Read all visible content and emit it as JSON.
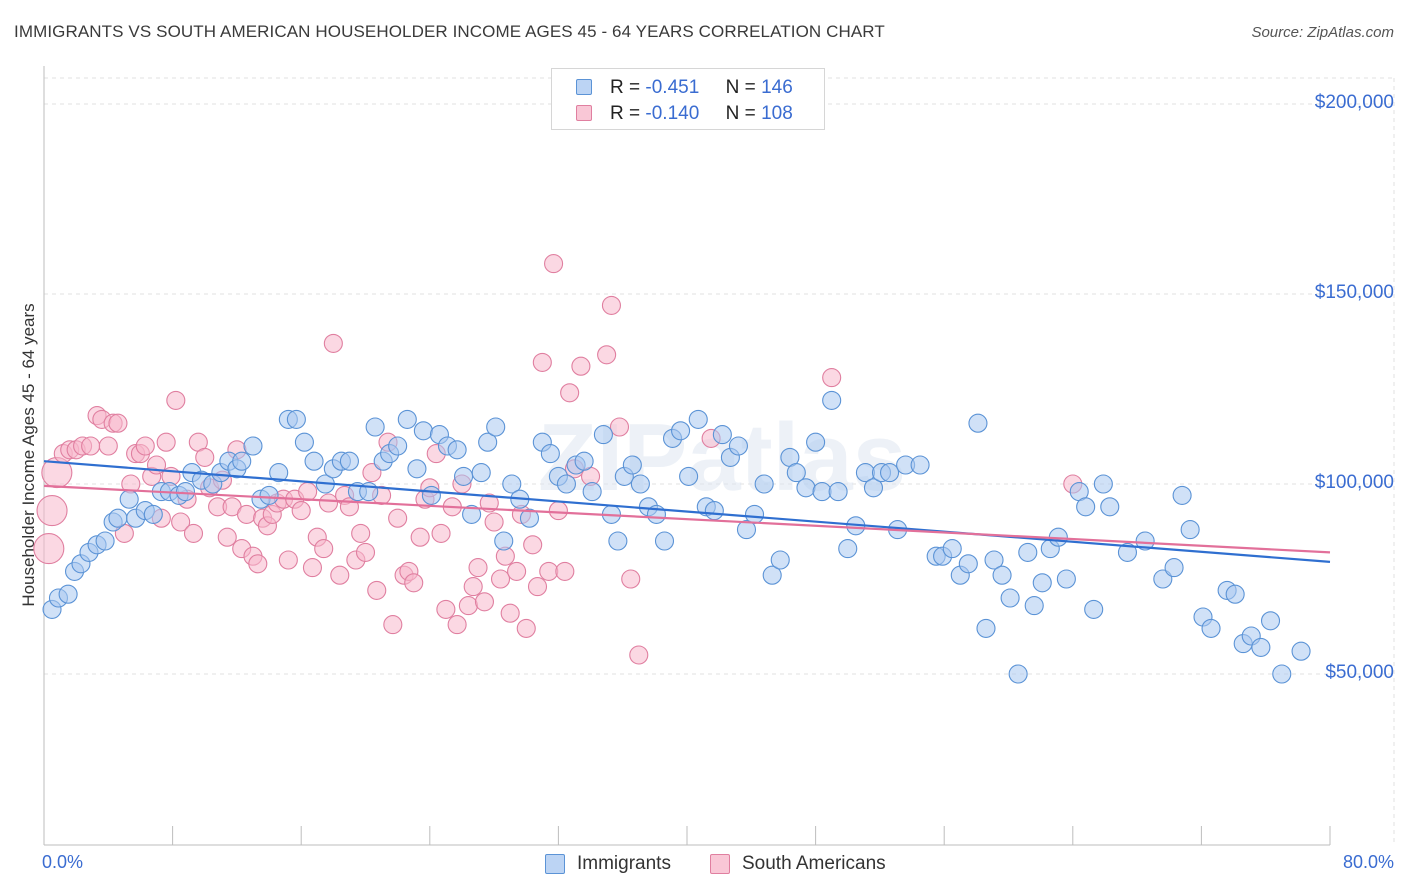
{
  "title": "IMMIGRANTS VS SOUTH AMERICAN HOUSEHOLDER INCOME AGES 45 - 64 YEARS CORRELATION CHART",
  "source": "Source: ZipAtlas.com",
  "watermark": "ZIPatlas",
  "stats": [
    {
      "r_label": "R =",
      "r_value": "-0.451",
      "n_label": "N =",
      "n_value": "146"
    },
    {
      "r_label": "R =",
      "r_value": "-0.140",
      "n_label": "N =",
      "n_value": "108"
    }
  ],
  "legend": [
    "Immigrants",
    "South Americans"
  ],
  "colors": {
    "immigrants_fill": "#a9c8f0",
    "immigrants_stroke": "#5b93d6",
    "immigrants_line": "#2f6fd0",
    "south_fill": "#f7b8cc",
    "south_stroke": "#e07fa0",
    "south_line": "#e2709a",
    "axis_text": "#3a6cd1",
    "grid": "#e2e2e2"
  },
  "chart_data": {
    "type": "scatter",
    "title": "IMMIGRANTS VS SOUTH AMERICAN HOUSEHOLDER INCOME AGES 45 - 64 YEARS CORRELATION CHART",
    "xlabel": "",
    "ylabel": "Householder Income Ages 45 - 64 years",
    "xlim": [
      0,
      80
    ],
    "ylim": [
      5000,
      210000
    ],
    "x_tick_labels": [
      "0.0%",
      "80.0%"
    ],
    "y_ticks": [
      50000,
      100000,
      150000,
      200000
    ],
    "y_tick_labels": [
      "$50,000",
      "$100,000",
      "$150,000",
      "$200,000"
    ],
    "grid": true,
    "legend_position": "bottom",
    "series": [
      {
        "name": "Immigrants",
        "R": -0.451,
        "N": 146,
        "trend": [
          [
            0,
            106000
          ],
          [
            80,
            79500
          ]
        ],
        "points": [
          [
            0.5,
            67000
          ],
          [
            0.9,
            70000
          ],
          [
            1.5,
            71000
          ],
          [
            1.9,
            77000
          ],
          [
            2.3,
            79000
          ],
          [
            2.8,
            82000
          ],
          [
            3.3,
            84000
          ],
          [
            3.8,
            85000
          ],
          [
            4.3,
            90000
          ],
          [
            4.6,
            91000
          ],
          [
            5.3,
            96000
          ],
          [
            5.7,
            91000
          ],
          [
            6.3,
            93000
          ],
          [
            6.8,
            92000
          ],
          [
            7.3,
            98000
          ],
          [
            7.8,
            98000
          ],
          [
            8.4,
            97000
          ],
          [
            8.8,
            98000
          ],
          [
            9.2,
            103000
          ],
          [
            9.8,
            101000
          ],
          [
            10.5,
            100000
          ],
          [
            11.0,
            103000
          ],
          [
            11.5,
            106000
          ],
          [
            12.0,
            104000
          ],
          [
            12.3,
            106000
          ],
          [
            13.0,
            110000
          ],
          [
            13.5,
            96000
          ],
          [
            14.0,
            97000
          ],
          [
            14.6,
            103000
          ],
          [
            15.2,
            117000
          ],
          [
            15.7,
            117000
          ],
          [
            16.2,
            111000
          ],
          [
            16.8,
            106000
          ],
          [
            17.5,
            100000
          ],
          [
            18.0,
            104000
          ],
          [
            18.5,
            106000
          ],
          [
            19.0,
            106000
          ],
          [
            19.5,
            98000
          ],
          [
            20.2,
            98000
          ],
          [
            20.6,
            115000
          ],
          [
            21.1,
            106000
          ],
          [
            21.5,
            108000
          ],
          [
            22.0,
            110000
          ],
          [
            22.6,
            117000
          ],
          [
            23.2,
            104000
          ],
          [
            23.6,
            114000
          ],
          [
            24.1,
            97000
          ],
          [
            24.6,
            113000
          ],
          [
            25.1,
            110000
          ],
          [
            25.7,
            109000
          ],
          [
            26.1,
            102000
          ],
          [
            26.6,
            92000
          ],
          [
            27.2,
            103000
          ],
          [
            27.6,
            111000
          ],
          [
            28.1,
            115000
          ],
          [
            28.6,
            85000
          ],
          [
            29.1,
            100000
          ],
          [
            29.6,
            96000
          ],
          [
            30.2,
            91000
          ],
          [
            31.0,
            111000
          ],
          [
            31.5,
            108000
          ],
          [
            32.0,
            102000
          ],
          [
            32.5,
            100000
          ],
          [
            33.1,
            105000
          ],
          [
            33.6,
            106000
          ],
          [
            34.1,
            98000
          ],
          [
            34.8,
            113000
          ],
          [
            35.3,
            92000
          ],
          [
            35.7,
            85000
          ],
          [
            36.1,
            102000
          ],
          [
            36.6,
            105000
          ],
          [
            37.1,
            100000
          ],
          [
            37.6,
            94000
          ],
          [
            38.1,
            92000
          ],
          [
            38.6,
            85000
          ],
          [
            39.1,
            112000
          ],
          [
            39.6,
            114000
          ],
          [
            40.1,
            102000
          ],
          [
            40.7,
            117000
          ],
          [
            41.2,
            94000
          ],
          [
            41.7,
            93000
          ],
          [
            42.2,
            113000
          ],
          [
            42.7,
            107000
          ],
          [
            43.2,
            110000
          ],
          [
            43.7,
            88000
          ],
          [
            44.2,
            92000
          ],
          [
            44.8,
            100000
          ],
          [
            45.3,
            76000
          ],
          [
            45.8,
            80000
          ],
          [
            46.4,
            107000
          ],
          [
            46.8,
            103000
          ],
          [
            47.4,
            99000
          ],
          [
            48.0,
            111000
          ],
          [
            48.4,
            98000
          ],
          [
            49.0,
            122000
          ],
          [
            49.4,
            98000
          ],
          [
            50.0,
            83000
          ],
          [
            50.5,
            89000
          ],
          [
            51.1,
            103000
          ],
          [
            51.6,
            99000
          ],
          [
            52.1,
            103000
          ],
          [
            52.6,
            103000
          ],
          [
            53.1,
            88000
          ],
          [
            53.6,
            105000
          ],
          [
            54.5,
            105000
          ],
          [
            55.5,
            81000
          ],
          [
            55.9,
            81000
          ],
          [
            56.5,
            83000
          ],
          [
            57.0,
            76000
          ],
          [
            57.5,
            79000
          ],
          [
            58.1,
            116000
          ],
          [
            58.6,
            62000
          ],
          [
            59.1,
            80000
          ],
          [
            59.6,
            76000
          ],
          [
            60.1,
            70000
          ],
          [
            60.6,
            50000
          ],
          [
            61.2,
            82000
          ],
          [
            61.6,
            68000
          ],
          [
            62.1,
            74000
          ],
          [
            62.6,
            83000
          ],
          [
            63.1,
            86000
          ],
          [
            63.6,
            75000
          ],
          [
            64.4,
            98000
          ],
          [
            64.8,
            94000
          ],
          [
            65.3,
            67000
          ],
          [
            65.9,
            100000
          ],
          [
            66.3,
            94000
          ],
          [
            67.4,
            82000
          ],
          [
            68.5,
            85000
          ],
          [
            69.6,
            75000
          ],
          [
            70.3,
            78000
          ],
          [
            70.8,
            97000
          ],
          [
            71.3,
            88000
          ],
          [
            72.1,
            65000
          ],
          [
            72.6,
            62000
          ],
          [
            73.6,
            72000
          ],
          [
            74.1,
            71000
          ],
          [
            74.6,
            58000
          ],
          [
            75.1,
            60000
          ],
          [
            75.7,
            57000
          ],
          [
            76.3,
            64000
          ],
          [
            77.0,
            50000
          ],
          [
            78.2,
            56000
          ]
        ]
      },
      {
        "name": "South Americans",
        "R": -0.14,
        "N": 108,
        "trend": [
          [
            0,
            99500
          ],
          [
            80,
            82000
          ]
        ],
        "points": [
          [
            0.3,
            83000
          ],
          [
            0.5,
            93000
          ],
          [
            0.8,
            103000
          ],
          [
            1.2,
            108000
          ],
          [
            1.6,
            109000
          ],
          [
            2.0,
            109000
          ],
          [
            2.4,
            110000
          ],
          [
            2.9,
            110000
          ],
          [
            3.3,
            118000
          ],
          [
            3.6,
            117000
          ],
          [
            4.0,
            110000
          ],
          [
            4.3,
            116000
          ],
          [
            4.6,
            116000
          ],
          [
            5.0,
            87000
          ],
          [
            5.4,
            100000
          ],
          [
            5.7,
            108000
          ],
          [
            6.0,
            108000
          ],
          [
            6.3,
            110000
          ],
          [
            6.7,
            102000
          ],
          [
            7.0,
            105000
          ],
          [
            7.3,
            91000
          ],
          [
            7.6,
            111000
          ],
          [
            7.9,
            102000
          ],
          [
            8.2,
            122000
          ],
          [
            8.5,
            90000
          ],
          [
            8.9,
            96000
          ],
          [
            9.3,
            87000
          ],
          [
            9.6,
            111000
          ],
          [
            10.0,
            107000
          ],
          [
            10.3,
            99000
          ],
          [
            10.8,
            94000
          ],
          [
            11.1,
            101000
          ],
          [
            11.4,
            86000
          ],
          [
            11.7,
            94000
          ],
          [
            12.0,
            109000
          ],
          [
            12.3,
            83000
          ],
          [
            12.6,
            92000
          ],
          [
            13.0,
            81000
          ],
          [
            13.3,
            79000
          ],
          [
            13.6,
            91000
          ],
          [
            13.9,
            89000
          ],
          [
            14.2,
            92000
          ],
          [
            14.5,
            95000
          ],
          [
            14.9,
            96000
          ],
          [
            15.2,
            80000
          ],
          [
            15.6,
            96000
          ],
          [
            16.0,
            93000
          ],
          [
            16.4,
            98000
          ],
          [
            16.7,
            78000
          ],
          [
            17.0,
            86000
          ],
          [
            17.4,
            83000
          ],
          [
            17.7,
            95000
          ],
          [
            18.0,
            137000
          ],
          [
            18.4,
            76000
          ],
          [
            18.7,
            97000
          ],
          [
            19.0,
            94000
          ],
          [
            19.4,
            80000
          ],
          [
            19.7,
            87000
          ],
          [
            20.0,
            82000
          ],
          [
            20.4,
            103000
          ],
          [
            20.7,
            72000
          ],
          [
            21.0,
            97000
          ],
          [
            21.4,
            111000
          ],
          [
            21.7,
            63000
          ],
          [
            22.0,
            91000
          ],
          [
            22.4,
            76000
          ],
          [
            22.7,
            77000
          ],
          [
            23.0,
            74000
          ],
          [
            23.4,
            86000
          ],
          [
            23.7,
            96000
          ],
          [
            24.0,
            99000
          ],
          [
            24.4,
            108000
          ],
          [
            24.7,
            87000
          ],
          [
            25.0,
            67000
          ],
          [
            25.4,
            94000
          ],
          [
            25.7,
            63000
          ],
          [
            26.0,
            100000
          ],
          [
            26.4,
            68000
          ],
          [
            26.7,
            73000
          ],
          [
            27.0,
            78000
          ],
          [
            27.4,
            69000
          ],
          [
            27.7,
            95000
          ],
          [
            28.0,
            90000
          ],
          [
            28.4,
            75000
          ],
          [
            28.7,
            81000
          ],
          [
            29.0,
            66000
          ],
          [
            29.4,
            77000
          ],
          [
            29.7,
            92000
          ],
          [
            30.0,
            62000
          ],
          [
            30.4,
            84000
          ],
          [
            30.7,
            73000
          ],
          [
            31.0,
            132000
          ],
          [
            31.4,
            77000
          ],
          [
            31.7,
            158000
          ],
          [
            32.0,
            93000
          ],
          [
            32.4,
            77000
          ],
          [
            32.7,
            124000
          ],
          [
            33.0,
            104000
          ],
          [
            33.4,
            131000
          ],
          [
            34.0,
            102000
          ],
          [
            35.0,
            134000
          ],
          [
            35.3,
            147000
          ],
          [
            35.8,
            115000
          ],
          [
            36.5,
            75000
          ],
          [
            37.0,
            55000
          ],
          [
            41.5,
            112000
          ],
          [
            49.0,
            128000
          ],
          [
            64.0,
            100000
          ]
        ]
      }
    ]
  }
}
